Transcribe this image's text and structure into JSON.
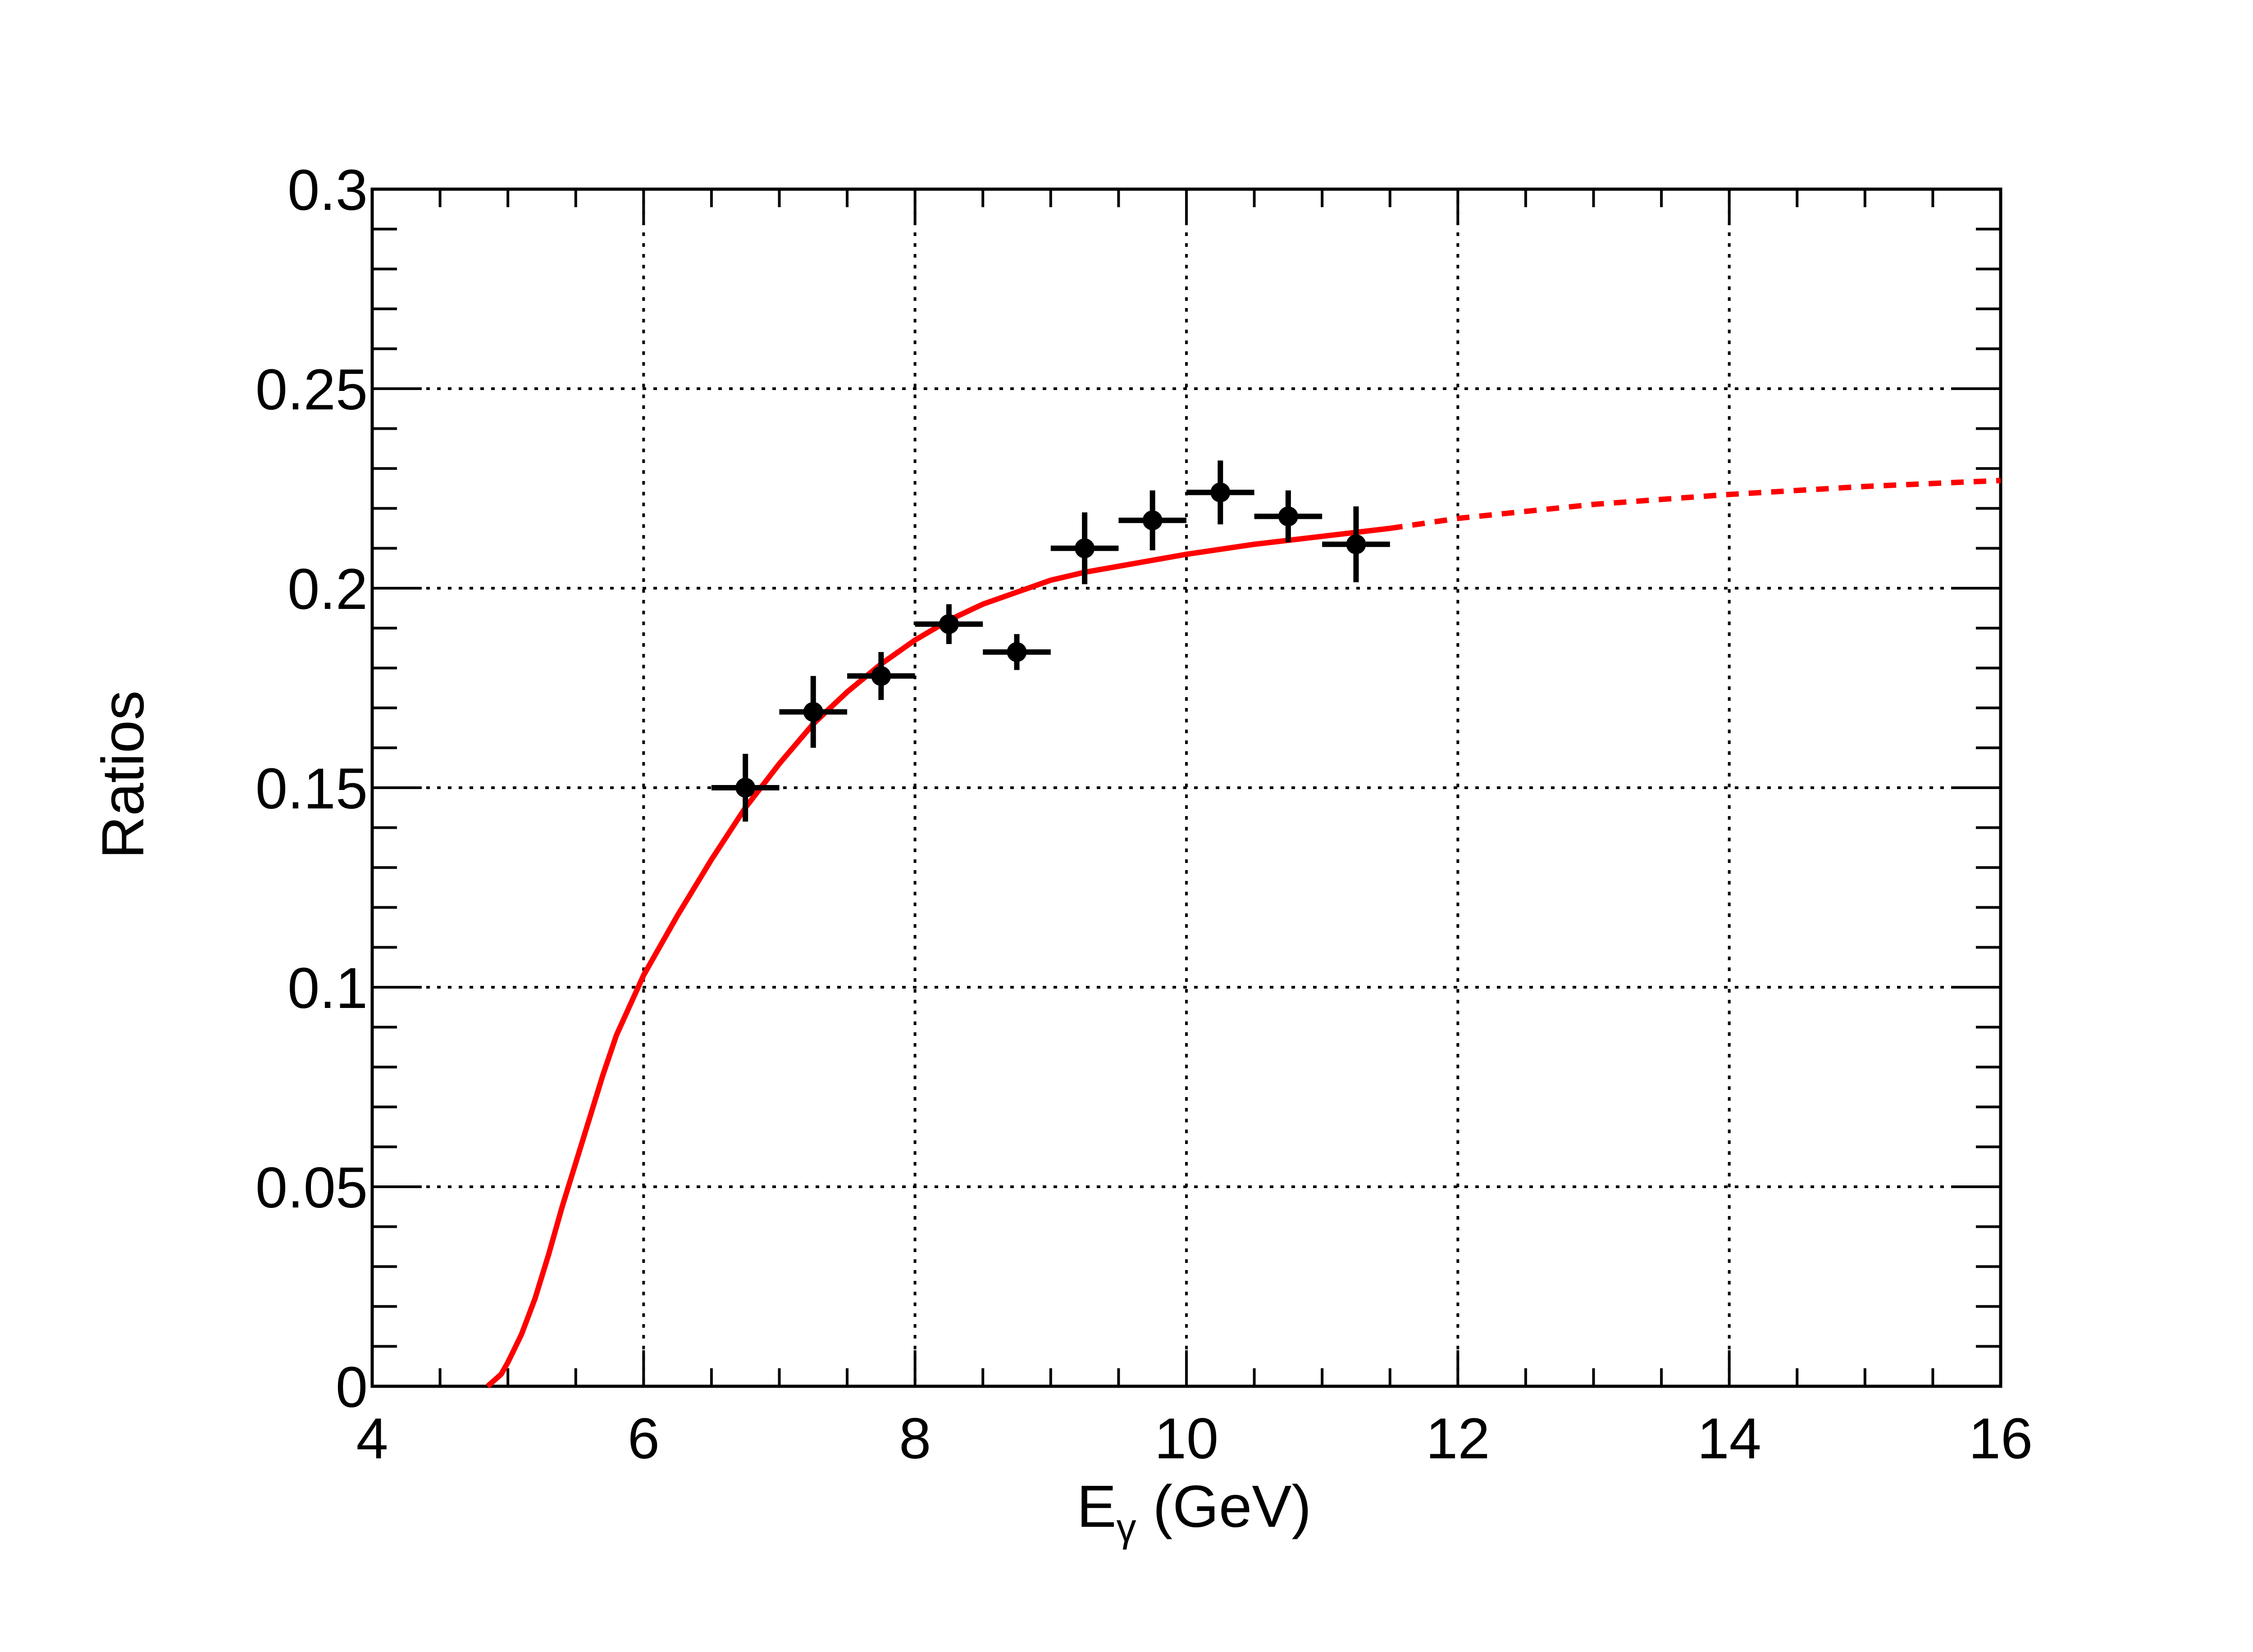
{
  "chart_data": {
    "type": "scatter",
    "title": "",
    "xlabel": "E",
    "xlabel_sub": "γ",
    "xlabel_unit": " (GeV)",
    "ylabel": "Ratios",
    "xlim": [
      4,
      16
    ],
    "ylim": [
      0,
      0.3
    ],
    "grid": true,
    "x_tick_labels": [
      "4",
      "6",
      "8",
      "10",
      "12",
      "14",
      "16"
    ],
    "y_tick_labels": [
      "0",
      "0.05",
      "0.1",
      "0.15",
      "0.2",
      "0.25",
      "0.3"
    ],
    "points": [
      {
        "x": 6.75,
        "y": 0.15,
        "xerr": 0.25,
        "yerr": 0.0085
      },
      {
        "x": 7.25,
        "y": 0.169,
        "xerr": 0.25,
        "yerr": 0.009
      },
      {
        "x": 7.75,
        "y": 0.178,
        "xerr": 0.25,
        "yerr": 0.006
      },
      {
        "x": 8.25,
        "y": 0.191,
        "xerr": 0.25,
        "yerr": 0.005
      },
      {
        "x": 8.75,
        "y": 0.184,
        "xerr": 0.25,
        "yerr": 0.0045
      },
      {
        "x": 9.25,
        "y": 0.21,
        "xerr": 0.25,
        "yerr": 0.009
      },
      {
        "x": 9.75,
        "y": 0.217,
        "xerr": 0.25,
        "yerr": 0.0075
      },
      {
        "x": 10.25,
        "y": 0.224,
        "xerr": 0.25,
        "yerr": 0.008
      },
      {
        "x": 10.75,
        "y": 0.218,
        "xerr": 0.25,
        "yerr": 0.0065
      },
      {
        "x": 11.25,
        "y": 0.211,
        "xerr": 0.25,
        "yerr": 0.0095
      }
    ],
    "fit_curve": {
      "color": "#ff0000",
      "solid_range": [
        4.85,
        11.5
      ],
      "dashed_range": [
        11.5,
        16.0
      ],
      "samples": [
        [
          4.85,
          0.0
        ],
        [
          4.95,
          0.003
        ],
        [
          5.0,
          0.006
        ],
        [
          5.1,
          0.013
        ],
        [
          5.2,
          0.022
        ],
        [
          5.3,
          0.033
        ],
        [
          5.4,
          0.045
        ],
        [
          5.5,
          0.056
        ],
        [
          5.6,
          0.067
        ],
        [
          5.7,
          0.078
        ],
        [
          5.8,
          0.088
        ],
        [
          6.0,
          0.103
        ],
        [
          6.25,
          0.118
        ],
        [
          6.5,
          0.132
        ],
        [
          6.75,
          0.145
        ],
        [
          7.0,
          0.156
        ],
        [
          7.25,
          0.166
        ],
        [
          7.5,
          0.174
        ],
        [
          7.75,
          0.181
        ],
        [
          8.0,
          0.187
        ],
        [
          8.25,
          0.192
        ],
        [
          8.5,
          0.196
        ],
        [
          8.75,
          0.199
        ],
        [
          9.0,
          0.202
        ],
        [
          9.25,
          0.204
        ],
        [
          9.5,
          0.2055
        ],
        [
          9.75,
          0.207
        ],
        [
          10.0,
          0.2085
        ],
        [
          10.5,
          0.211
        ],
        [
          11.0,
          0.213
        ],
        [
          11.5,
          0.215
        ],
        [
          12.0,
          0.2175
        ],
        [
          13.0,
          0.221
        ],
        [
          14.0,
          0.2235
        ],
        [
          15.0,
          0.2255
        ],
        [
          16.0,
          0.227
        ]
      ]
    },
    "colors": {
      "points": "#000000",
      "fit": "#ff0000",
      "frame": "#000000"
    }
  }
}
